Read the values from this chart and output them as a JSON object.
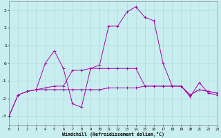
{
  "bg_color": "#c8eef0",
  "grid_color": "#b0d8dc",
  "line_color": "#aa00aa",
  "xlabel": "Windchill (Refroidissement éolien,°C)",
  "xlim": [
    0,
    23
  ],
  "ylim": [
    -3.5,
    3.5
  ],
  "yticks": [
    -3,
    -2,
    -1,
    0,
    1,
    2,
    3
  ],
  "xticks": [
    0,
    1,
    2,
    3,
    4,
    5,
    6,
    7,
    8,
    9,
    10,
    11,
    12,
    13,
    14,
    15,
    16,
    17,
    18,
    19,
    20,
    21,
    22,
    23
  ],
  "lines": [
    {
      "x": [
        0,
        1,
        2,
        3,
        4,
        5,
        6,
        7,
        8,
        9,
        10,
        11,
        12,
        13,
        14,
        15,
        16,
        17,
        18,
        19,
        20,
        21,
        22,
        23
      ],
      "y": [
        -3.0,
        -1.8,
        -1.6,
        -1.5,
        0.0,
        0.7,
        -0.3,
        -2.3,
        -2.5,
        -0.3,
        -0.1,
        2.1,
        2.1,
        2.9,
        3.2,
        2.6,
        2.4,
        0.0,
        -1.3,
        -1.3,
        -1.9,
        -1.1,
        -1.7,
        -1.8
      ]
    },
    {
      "x": [
        2,
        3,
        4,
        5,
        6,
        7,
        8,
        9,
        10,
        11,
        12,
        13,
        14,
        15,
        16,
        17,
        18,
        19,
        20,
        21,
        22,
        23
      ],
      "y": [
        -1.6,
        -1.5,
        -1.4,
        -1.3,
        -1.3,
        -0.4,
        -0.4,
        -0.3,
        -0.3,
        -0.3,
        -0.3,
        -0.3,
        -0.3,
        -1.3,
        -1.3,
        -1.3,
        -1.3,
        -1.3,
        -1.8,
        -1.5,
        -1.6,
        -1.7
      ]
    },
    {
      "x": [
        0,
        1,
        2,
        3,
        4,
        5,
        6,
        7,
        8,
        9,
        10,
        11,
        12,
        13,
        14,
        15,
        16,
        17,
        18,
        19,
        20,
        21,
        22,
        23
      ],
      "y": [
        -3.0,
        -1.8,
        -1.6,
        -1.5,
        -1.5,
        -1.5,
        -1.5,
        -1.5,
        -1.5,
        -1.5,
        -1.5,
        -1.4,
        -1.4,
        -1.4,
        -1.4,
        -1.3,
        -1.3,
        -1.3,
        -1.3,
        -1.3,
        -1.8,
        -1.5,
        -1.6,
        -1.7
      ]
    }
  ]
}
